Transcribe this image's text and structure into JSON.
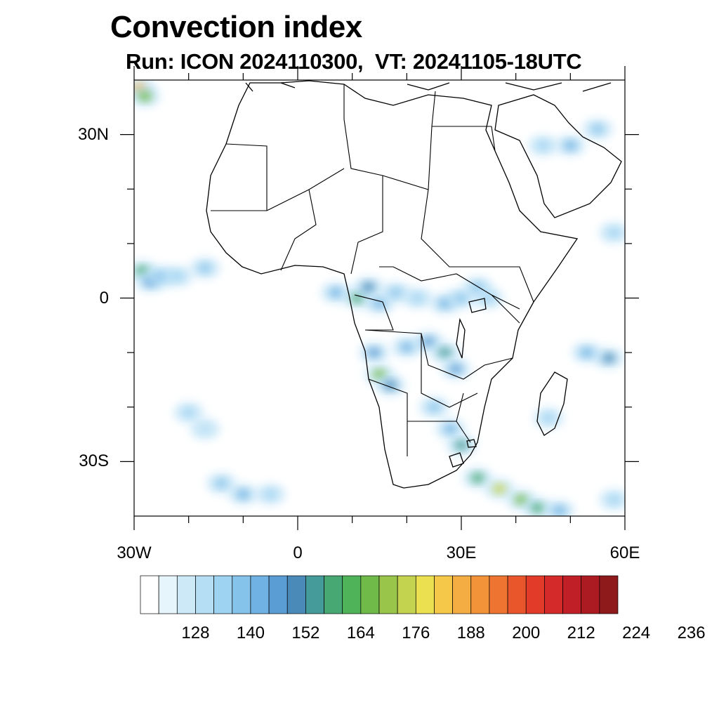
{
  "title": "Convection index",
  "subtitle": "Run: ICON 2024110300,  VT: 20241105-18UTC",
  "map": {
    "lon_range": [
      -30,
      60
    ],
    "lat_range": [
      -40,
      40
    ],
    "lat_labels": [
      "30N",
      "0",
      "30S"
    ],
    "lon_labels": [
      "30W",
      "0",
      "30E",
      "60E"
    ],
    "frame_color": "#000000",
    "coastline_color": "#000000"
  },
  "colorbar": {
    "levels": [
      "128",
      "140",
      "152",
      "164",
      "176",
      "188",
      "200",
      "212",
      "224",
      "236"
    ],
    "colors": [
      "#ffffff",
      "#e6f4fb",
      "#cde9f7",
      "#b5def5",
      "#9fd3f2",
      "#86c3ea",
      "#6fb2e3",
      "#5a9dd4",
      "#4a8ab8",
      "#459b9a",
      "#47a874",
      "#4eb359",
      "#6fba48",
      "#98c54a",
      "#c4d34f",
      "#ebe150",
      "#f6c84a",
      "#f4ad42",
      "#f2933a",
      "#ee7432",
      "#e9562c",
      "#e23b2a",
      "#d42a2a",
      "#c01f27",
      "#ac1b22",
      "#8f1a1c"
    ]
  },
  "convection_cells": [
    {
      "lon": -29,
      "lat": 38.5,
      "level": 17
    },
    {
      "lon": -28,
      "lat": 37,
      "level": 12
    },
    {
      "lon": -28.5,
      "lat": 5,
      "level": 10
    },
    {
      "lon": -27,
      "lat": 3,
      "level": 7
    },
    {
      "lon": -25,
      "lat": 4,
      "level": 5
    },
    {
      "lon": -22,
      "lat": 4,
      "level": 4
    },
    {
      "lon": -17,
      "lat": 5.5,
      "level": 5
    },
    {
      "lon": -20,
      "lat": -21,
      "level": 4
    },
    {
      "lon": -17,
      "lat": -24,
      "level": 3
    },
    {
      "lon": -14,
      "lat": -34,
      "level": 5
    },
    {
      "lon": -10,
      "lat": -36,
      "level": 6
    },
    {
      "lon": -5,
      "lat": -36,
      "level": 4
    },
    {
      "lon": 7,
      "lat": 1,
      "level": 6
    },
    {
      "lon": 11,
      "lat": 0,
      "level": 10
    },
    {
      "lon": 13,
      "lat": 2,
      "level": 8
    },
    {
      "lon": 15,
      "lat": -1,
      "level": 6
    },
    {
      "lon": 18,
      "lat": 1,
      "level": 5
    },
    {
      "lon": 22,
      "lat": 0,
      "level": 4
    },
    {
      "lon": 27,
      "lat": -1,
      "level": 6
    },
    {
      "lon": 30,
      "lat": 0,
      "level": 5
    },
    {
      "lon": 33,
      "lat": 2,
      "level": 5
    },
    {
      "lon": 35,
      "lat": 0,
      "level": 4
    },
    {
      "lon": 14,
      "lat": -10,
      "level": 7
    },
    {
      "lon": 15,
      "lat": -14,
      "level": 12
    },
    {
      "lon": 17,
      "lat": -16,
      "level": 8
    },
    {
      "lon": 20,
      "lat": -9,
      "level": 6
    },
    {
      "lon": 24,
      "lat": -8,
      "level": 7
    },
    {
      "lon": 27,
      "lat": -10,
      "level": 9
    },
    {
      "lon": 29,
      "lat": -13,
      "level": 7
    },
    {
      "lon": 25,
      "lat": -20,
      "level": 5
    },
    {
      "lon": 28,
      "lat": -24,
      "level": 6
    },
    {
      "lon": 30,
      "lat": -27,
      "level": 9
    },
    {
      "lon": 33,
      "lat": -33,
      "level": 10
    },
    {
      "lon": 37,
      "lat": -35,
      "level": 14
    },
    {
      "lon": 41,
      "lat": -37,
      "level": 12
    },
    {
      "lon": 44,
      "lat": -38.5,
      "level": 10
    },
    {
      "lon": 48,
      "lat": -39,
      "level": 6
    },
    {
      "lon": 57,
      "lat": -11,
      "level": 8
    },
    {
      "lon": 53,
      "lat": -10,
      "level": 6
    },
    {
      "lon": 46,
      "lat": -22,
      "level": 4
    },
    {
      "lon": 50,
      "lat": 28,
      "level": 6
    },
    {
      "lon": 55,
      "lat": 31,
      "level": 5
    },
    {
      "lon": 45,
      "lat": 28,
      "level": 4
    },
    {
      "lon": 58,
      "lat": 12,
      "level": 4
    },
    {
      "lon": 58,
      "lat": -37,
      "level": 4
    }
  ]
}
